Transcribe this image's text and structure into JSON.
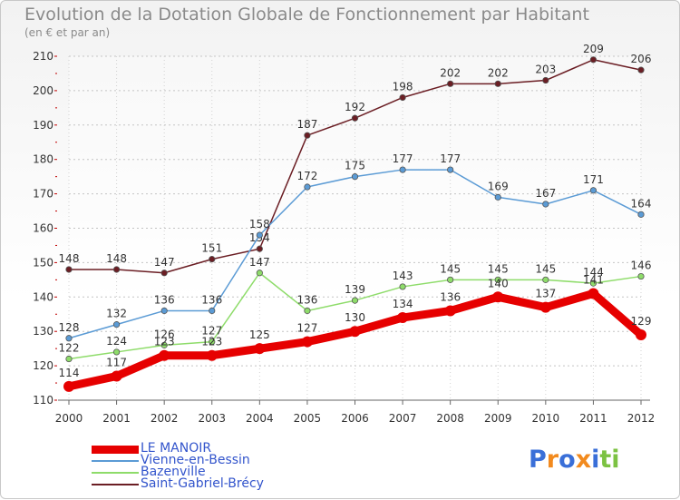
{
  "header": {
    "title": "Evolution de la Dotation Globale de Fonctionnement par Habitant",
    "subtitle": "(en € et par an)"
  },
  "chart_data": {
    "type": "line",
    "title": "Evolution de la Dotation Globale de Fonctionnement par Habitant",
    "ylabel": "(en € et par an)",
    "xlabel": "",
    "ylim": [
      110,
      210
    ],
    "yticks": [
      110,
      120,
      130,
      140,
      150,
      160,
      170,
      180,
      190,
      200,
      210
    ],
    "x": [
      "2000",
      "2001",
      "2002",
      "2003",
      "2004",
      "2005",
      "2006",
      "2007",
      "2008",
      "2009",
      "2010",
      "2011",
      "2012"
    ],
    "grid": "horizontal",
    "legend_position": "bottom-left",
    "series": [
      {
        "name": "LE MANOIR",
        "color": "#e60000",
        "values": [
          114,
          117,
          123,
          123,
          125,
          127,
          130,
          134,
          136,
          140,
          137,
          141,
          129
        ]
      },
      {
        "name": "Vienne-en-Bessin",
        "color": "#5b9bd5",
        "values": [
          128,
          132,
          136,
          136,
          158,
          172,
          175,
          177,
          177,
          169,
          167,
          171,
          164
        ]
      },
      {
        "name": "Bazenville",
        "color": "#8edc6a",
        "values": [
          122,
          124,
          126,
          127,
          147,
          136,
          139,
          143,
          145,
          145,
          145,
          144,
          146
        ]
      },
      {
        "name": "Saint-Gabriel-Brécy",
        "color": "#6b1e24",
        "values": [
          148,
          148,
          147,
          151,
          154,
          187,
          192,
          198,
          202,
          202,
          203,
          209,
          206
        ]
      }
    ]
  },
  "logo": {
    "letters": [
      "P",
      "r",
      "o",
      "x",
      "i",
      "t",
      "i"
    ],
    "colors": [
      "#3a6fd8",
      "#f28a1e",
      "#3a6fd8",
      "#f28a1e",
      "#3a6fd8",
      "#7cc242",
      "#7cc242"
    ]
  }
}
